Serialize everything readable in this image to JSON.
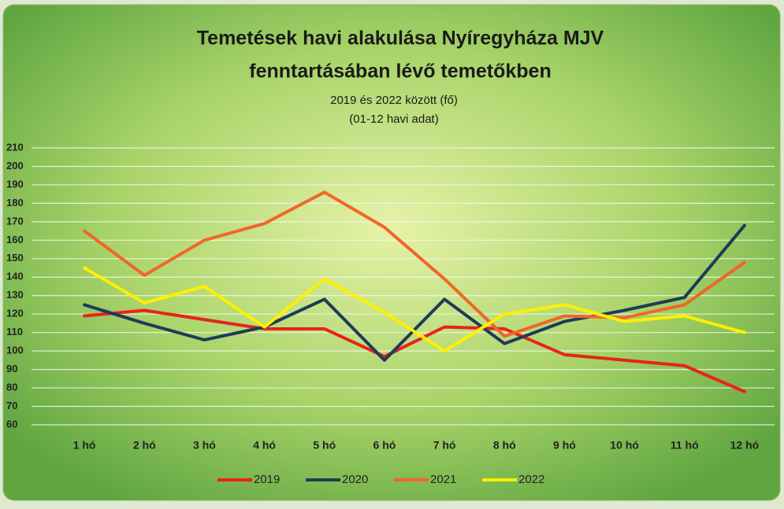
{
  "chart_data": {
    "type": "line",
    "title": [
      "Temetések havi alakulása Nyíregyháza MJV",
      "fenntartásában lévő temetőkben"
    ],
    "subtitle": [
      "2019 és 2022 között (fő)",
      "(01-12 havi adat)"
    ],
    "categories": [
      "1 hó",
      "2 hó",
      "3 hó",
      "4 hó",
      "5 hó",
      "6 hó",
      "7 hó",
      "8 hó",
      "9 hó",
      "10 hó",
      "11 hó",
      "12 hó"
    ],
    "series": [
      {
        "name": "2019",
        "color": "#e8231a",
        "values": [
          119,
          122,
          117,
          112,
          112,
          97,
          113,
          112,
          98,
          95,
          92,
          78
        ]
      },
      {
        "name": "2020",
        "color": "#1f3b5a",
        "values": [
          125,
          115,
          106,
          113,
          128,
          95,
          128,
          104,
          116,
          122,
          129,
          168
        ]
      },
      {
        "name": "2021",
        "color": "#f0662a",
        "values": [
          165,
          141,
          160,
          169,
          186,
          167,
          139,
          108,
          119,
          118,
          125,
          148
        ]
      },
      {
        "name": "2022",
        "color": "#ffef00",
        "values": [
          145,
          126,
          135,
          113,
          139,
          121,
          100,
          120,
          125,
          116,
          119,
          110
        ]
      }
    ],
    "ylim": [
      60,
      210
    ],
    "yticks": [
      60,
      70,
      80,
      90,
      100,
      110,
      120,
      130,
      140,
      150,
      160,
      170,
      180,
      190,
      200,
      210
    ],
    "grid": true,
    "legend": "bottom"
  }
}
